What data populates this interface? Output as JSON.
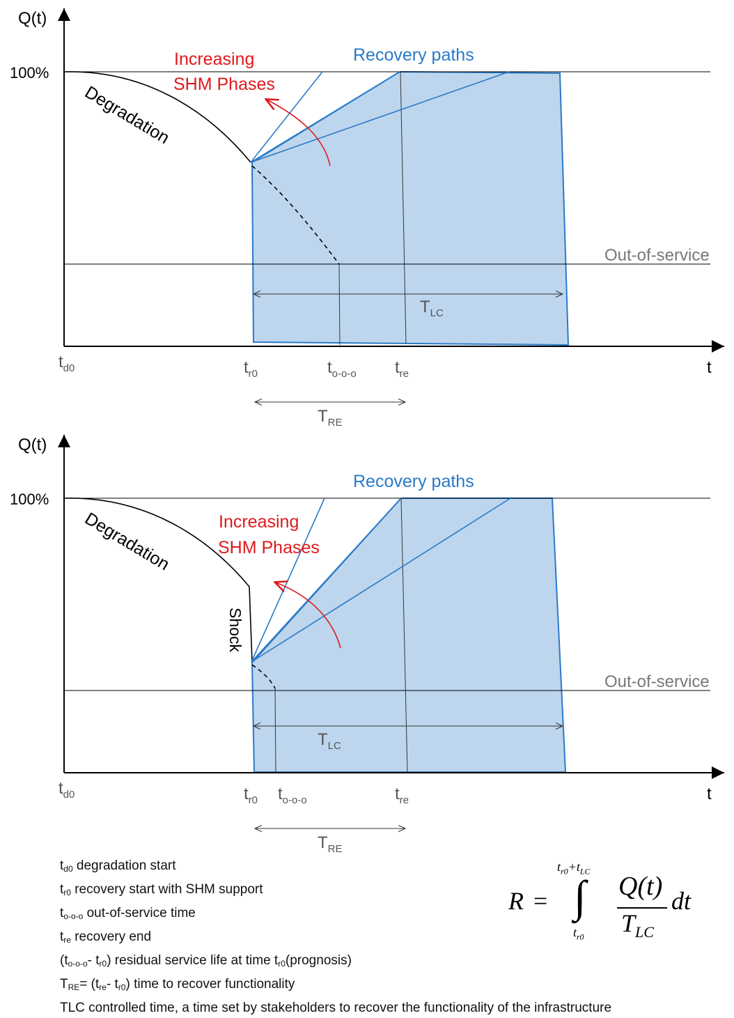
{
  "colors": {
    "recovery": "#2a7ac7",
    "shm": "#e0191c",
    "fill": "#bdd6ee",
    "axis": "#000000",
    "out_of_service": "#777777"
  },
  "labels": {
    "y_axis": "Q(t)",
    "x_axis": "t",
    "hundred": "100%",
    "recovery_paths": "Recovery paths",
    "shm_line1": "Increasing",
    "shm_line2": "SHM Phases",
    "degradation": "Degradation",
    "out_of_service": "Out-of-service",
    "shock": "Shock",
    "t_main": "t",
    "T_main": "T",
    "sub_d0": "d0",
    "sub_r0": "r0",
    "sub_ooo": "o-o-o",
    "sub_re": "re",
    "sub_LC": "LC",
    "sub_RE": "RE"
  },
  "legend": [
    {
      "sym": "t",
      "sub": "d0",
      "text": " degradation start"
    },
    {
      "sym": "t",
      "sub": "r0",
      "text": " recovery start with SHM support"
    },
    {
      "sym": "t",
      "sub": "o-o-o",
      "text": " out-of-service time"
    },
    {
      "sym": "t",
      "sub": "re",
      "text": " recovery end"
    },
    {
      "raw": "(t<sub>o-o-o</sub>- t<sub>r0</sub>) residual service life at time t<sub>r0</sub>(prognosis)"
    },
    {
      "raw": "T<sub>RE</sub>= (t<sub>re</sub>- t<sub>r0</sub>) time to recover functionality"
    },
    {
      "raw": "TLC controlled time, a time set by stakeholders to recover the functionality of the infrastructure"
    }
  ],
  "formula": {
    "lhs": "R",
    "eq": "=",
    "integral": "∫",
    "upper_t": "t",
    "upper_r0": "r0",
    "upper_plus": "+",
    "upper_t2": "t",
    "upper_LC": "LC",
    "lower_t": "t",
    "lower_r0": "r0",
    "numerator": "Q(t)",
    "den_T": "T",
    "den_LC": "LC",
    "dt": "dt"
  }
}
